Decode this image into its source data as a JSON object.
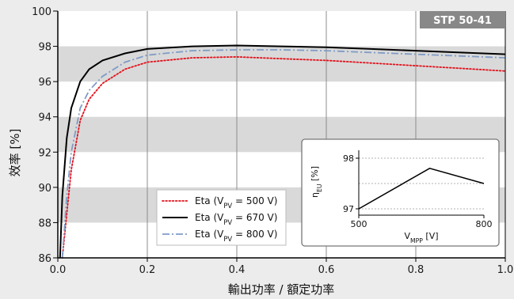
{
  "chart_data": [
    {
      "type": "line",
      "title": "",
      "badge": "STP 50-41",
      "xlabel": "輸出功率 / 額定功率",
      "ylabel": "效率 [%]",
      "xlim": [
        0.0,
        1.0
      ],
      "ylim": [
        86,
        100
      ],
      "xticks": [
        0.0,
        0.2,
        0.4,
        0.6,
        0.8,
        1.0
      ],
      "xtick_labels": [
        "0.0",
        "0.2",
        "0.4",
        "0.6",
        "0.8",
        "1.0"
      ],
      "yticks": [
        86,
        88,
        90,
        92,
        94,
        96,
        98,
        100
      ],
      "ytick_labels": [
        "86",
        "88",
        "90",
        "92",
        "94",
        "96",
        "98",
        "100"
      ],
      "grid": "vertical lines + horizontal bands",
      "legend_position": "bottom-left",
      "series": [
        {
          "name": "Eta (VPV = 500 V)",
          "legend": {
            "prefix": "Eta (V",
            "sub": "PV",
            "suffix": " = 500 V)"
          },
          "color": "#e3101a",
          "style": "dotted",
          "x": [
            0.01,
            0.02,
            0.03,
            0.05,
            0.07,
            0.1,
            0.15,
            0.2,
            0.3,
            0.4,
            0.5,
            0.6,
            0.7,
            0.8,
            0.9,
            1.0
          ],
          "y": [
            86.0,
            88.5,
            91.0,
            93.8,
            95.0,
            95.9,
            96.7,
            97.1,
            97.35,
            97.4,
            97.3,
            97.2,
            97.05,
            96.9,
            96.75,
            96.6
          ]
        },
        {
          "name": "Eta (VPV = 670 V)",
          "legend": {
            "prefix": "Eta (V",
            "sub": "PV",
            "suffix": " = 670 V)"
          },
          "color": "#000000",
          "style": "solid",
          "x": [
            0.005,
            0.01,
            0.02,
            0.03,
            0.05,
            0.07,
            0.1,
            0.15,
            0.2,
            0.3,
            0.4,
            0.5,
            0.6,
            0.7,
            0.8,
            0.9,
            1.0
          ],
          "y": [
            86.0,
            89.5,
            92.8,
            94.5,
            96.0,
            96.7,
            97.2,
            97.6,
            97.85,
            98.0,
            98.05,
            98.0,
            97.95,
            97.85,
            97.75,
            97.65,
            97.55
          ]
        },
        {
          "name": "Eta (VPV = 800 V)",
          "legend": {
            "prefix": "Eta (V",
            "sub": "PV",
            "suffix": " = 800 V)"
          },
          "color": "#7f9cc6",
          "style": "dashdot",
          "x": [
            0.01,
            0.02,
            0.03,
            0.05,
            0.07,
            0.1,
            0.15,
            0.2,
            0.3,
            0.4,
            0.5,
            0.6,
            0.7,
            0.8,
            0.9,
            1.0
          ],
          "y": [
            86.0,
            89.5,
            92.0,
            94.5,
            95.5,
            96.3,
            97.1,
            97.5,
            97.75,
            97.8,
            97.8,
            97.75,
            97.65,
            97.55,
            97.45,
            97.35
          ]
        }
      ]
    },
    {
      "type": "line",
      "title": "",
      "xlabel": {
        "prefix": "V",
        "sub": "MPP",
        "suffix": " [V]"
      },
      "ylabel": {
        "prefix": "η",
        "sub": "EU",
        "suffix": " [%]"
      },
      "xlim": [
        500,
        800
      ],
      "ylim": [
        97,
        98
      ],
      "xticks": [
        500,
        800
      ],
      "xtick_labels": [
        "500",
        "800"
      ],
      "yticks": [
        97,
        98
      ],
      "ytick_labels": [
        "97",
        "98"
      ],
      "grid": "horizontal dashed",
      "series": [
        {
          "name": "",
          "color": "#000000",
          "x": [
            500,
            670,
            800
          ],
          "y": [
            97.0,
            97.8,
            97.5
          ]
        }
      ]
    }
  ]
}
